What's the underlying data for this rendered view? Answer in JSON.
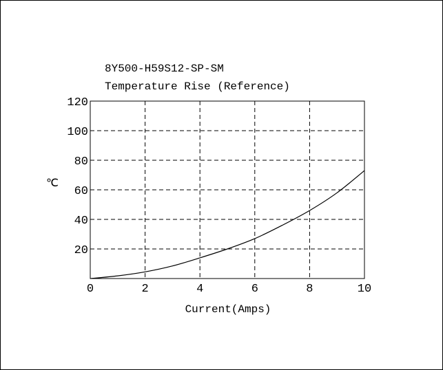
{
  "chart_data": {
    "type": "line",
    "title": "8Y500-H59S12-SP-SM",
    "subtitle": "Temperature Rise (Reference)",
    "xlabel": "Current(Amps)",
    "ylabel": "℃",
    "xlim": [
      0,
      10
    ],
    "ylim": [
      0,
      120
    ],
    "x_ticks": [
      "0",
      "2",
      "4",
      "6",
      "8",
      "10"
    ],
    "y_ticks": [
      "20",
      "40",
      "60",
      "80",
      "100",
      "120"
    ],
    "grid": true,
    "grid_style": "dashed",
    "series": [
      {
        "color": "#000000",
        "x": [
          0,
          1,
          2,
          3,
          4,
          5,
          6,
          7,
          8,
          9,
          10
        ],
        "y": [
          0,
          1.8,
          4.5,
          8.5,
          14,
          20,
          27,
          36,
          46,
          58,
          73
        ]
      }
    ]
  }
}
